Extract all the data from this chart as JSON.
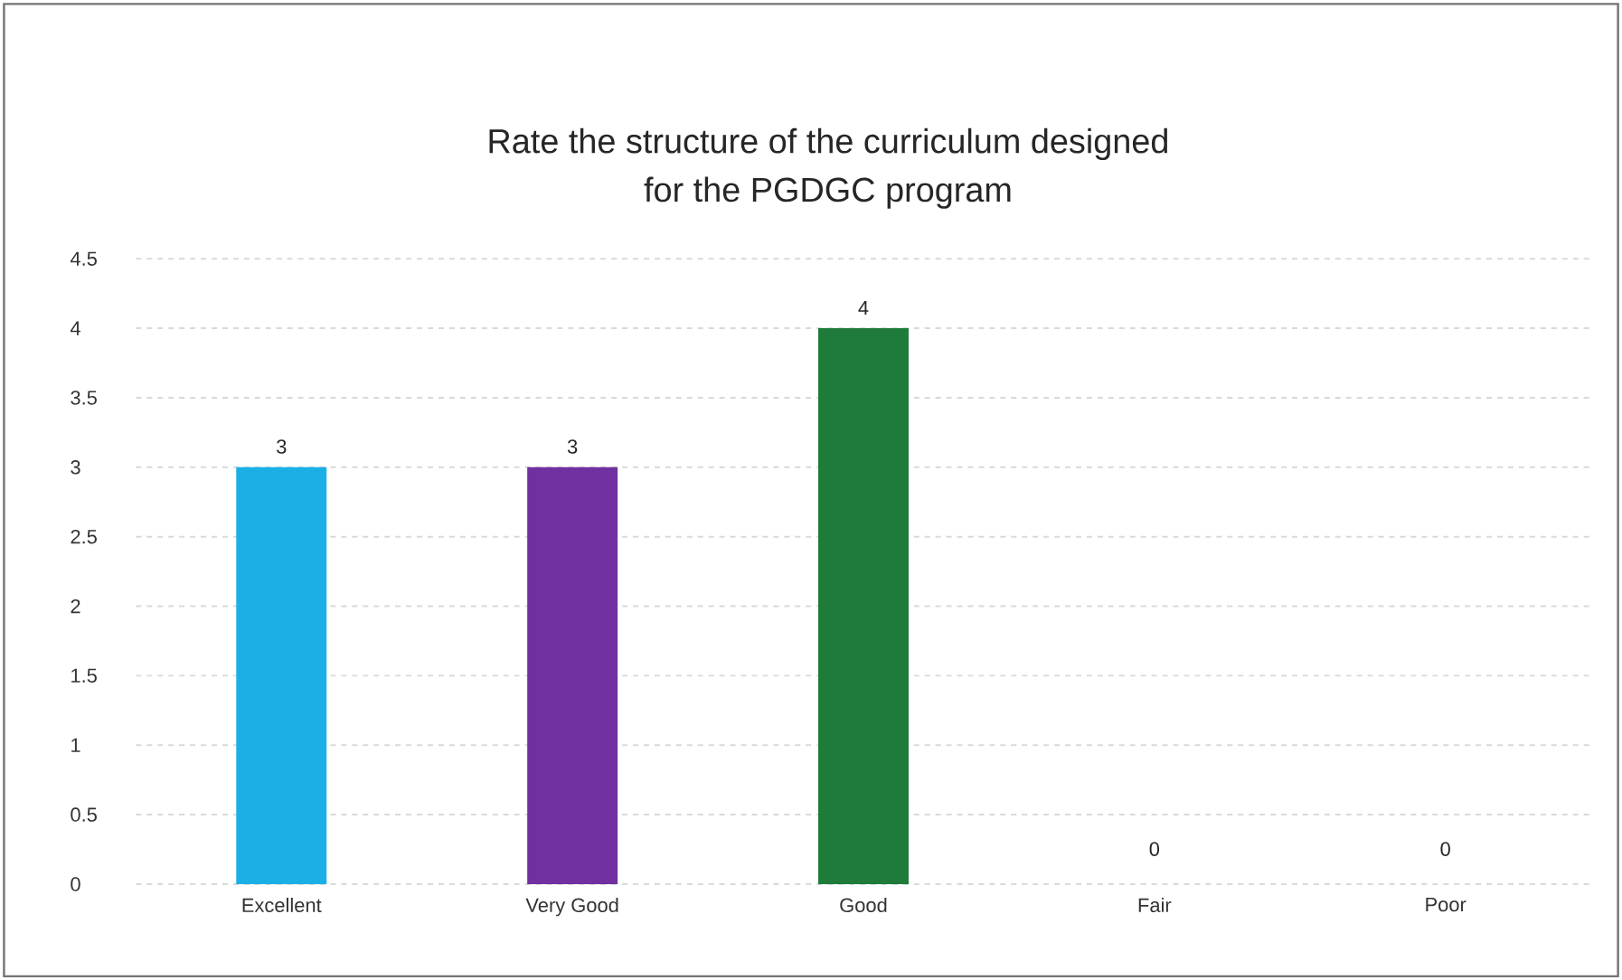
{
  "chart_data": {
    "type": "bar",
    "title": "Rate the structure of the curriculum designed\nfor the PGDGC program",
    "categories": [
      "Excellent",
      "Very Good",
      "Good",
      "Fair",
      "Poor"
    ],
    "values": [
      3,
      3,
      4,
      0,
      0
    ],
    "colors": [
      "#1ab0e6",
      "#7030a0",
      "#1e7b3a",
      "#1e7b3a",
      "#1e7b3a"
    ],
    "ylim": [
      0,
      4.5
    ],
    "yticks": [
      0,
      0.5,
      1,
      1.5,
      2,
      2.5,
      3,
      3.5,
      4,
      4.5
    ],
    "grid": "y",
    "data_labels": true
  }
}
